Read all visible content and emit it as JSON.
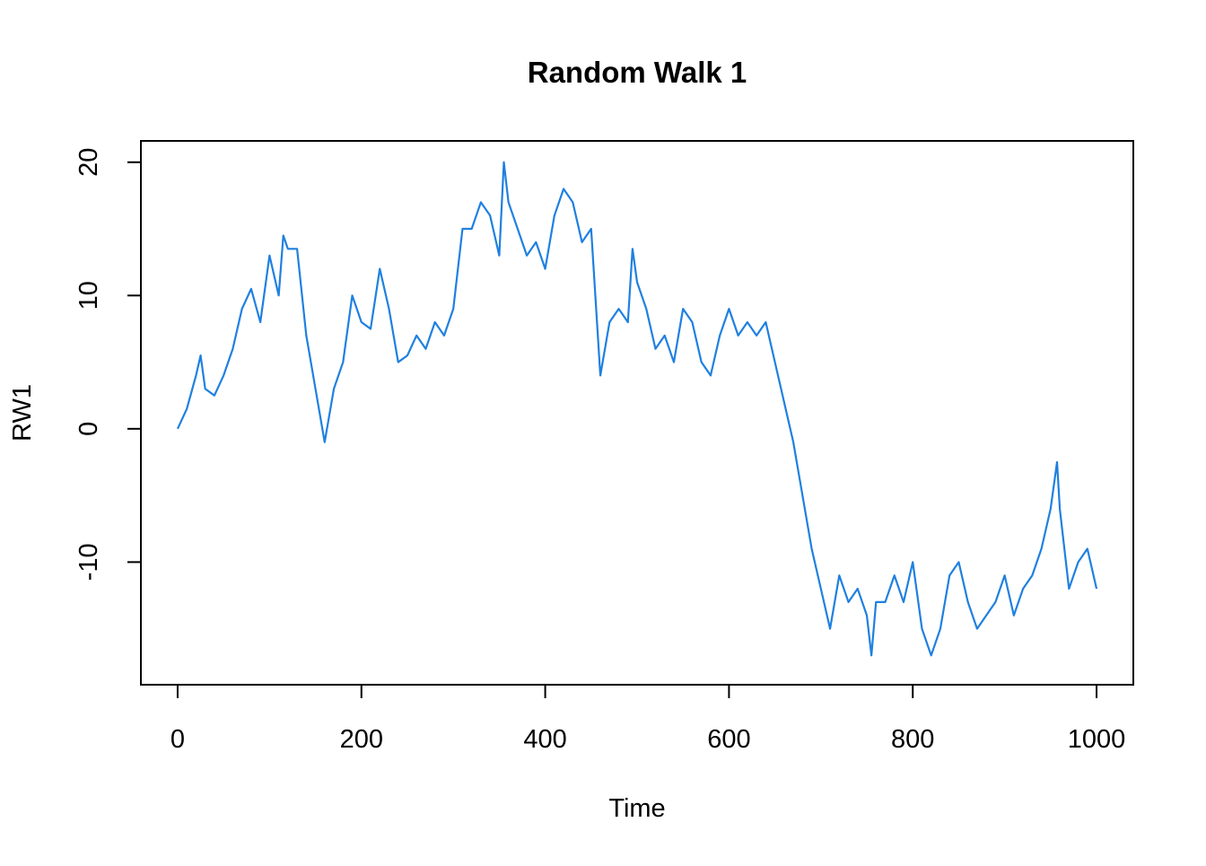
{
  "chart_data": {
    "type": "line",
    "title": "Random Walk 1",
    "x_label": "Time",
    "y_label": "RW1",
    "x": [
      0,
      10,
      20,
      25,
      30,
      40,
      50,
      60,
      70,
      80,
      90,
      100,
      110,
      115,
      120,
      130,
      140,
      150,
      160,
      170,
      180,
      190,
      200,
      210,
      220,
      230,
      240,
      250,
      260,
      270,
      280,
      290,
      300,
      310,
      320,
      330,
      340,
      350,
      355,
      360,
      370,
      380,
      390,
      400,
      410,
      420,
      430,
      440,
      450,
      460,
      470,
      480,
      490,
      495,
      500,
      510,
      520,
      530,
      540,
      550,
      560,
      570,
      580,
      590,
      600,
      610,
      620,
      630,
      640,
      650,
      660,
      670,
      680,
      690,
      700,
      710,
      720,
      730,
      740,
      750,
      755,
      760,
      770,
      780,
      790,
      800,
      810,
      820,
      830,
      840,
      850,
      860,
      870,
      880,
      890,
      900,
      910,
      920,
      930,
      940,
      950,
      957,
      960,
      970,
      980,
      990,
      1000
    ],
    "series": [
      {
        "name": "RW1",
        "color": "#1f80e0",
        "values": [
          0,
          1.5,
          4,
          5.5,
          3,
          2.5,
          4,
          6,
          9,
          10.5,
          8,
          13,
          10,
          14.5,
          13.5,
          13.5,
          7,
          3,
          -1,
          3,
          5,
          10,
          8,
          7.5,
          12,
          9,
          5,
          5.5,
          7,
          6,
          8,
          7,
          9,
          15,
          15,
          17,
          16,
          13,
          20,
          17,
          15,
          13,
          14,
          12,
          16,
          18,
          17,
          14,
          15,
          4,
          8,
          9,
          8,
          13.5,
          11,
          9,
          6,
          7,
          5,
          9,
          8,
          5,
          4,
          7,
          9,
          7,
          8,
          7,
          8,
          5,
          2,
          -1,
          -5,
          -9,
          -12,
          -15,
          -11,
          -13,
          -12,
          -14,
          -17,
          -13,
          -13,
          -11,
          -13,
          -10,
          -15,
          -17,
          -15,
          -11,
          -10,
          -13,
          -15,
          -14,
          -13,
          -11,
          -14,
          -12,
          -11,
          -9,
          -6,
          -2.5,
          -6,
          -12,
          -10,
          -9,
          -12
        ]
      }
    ],
    "xlim": [
      -40,
      1040
    ],
    "ylim": [
      -19.2,
      21.6
    ],
    "xticks": [
      0,
      200,
      400,
      600,
      800,
      1000
    ],
    "yticks": [
      -10,
      0,
      10,
      20
    ]
  }
}
